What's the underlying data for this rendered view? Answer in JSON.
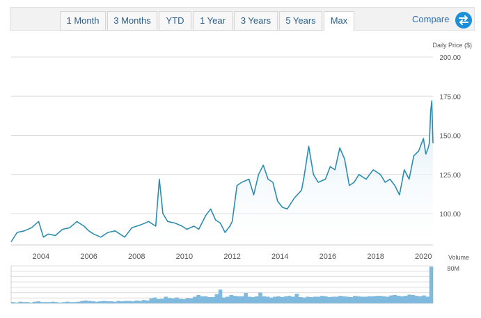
{
  "tabs": [
    {
      "label": "1 Month",
      "active": false
    },
    {
      "label": "3 Months",
      "active": false
    },
    {
      "label": "YTD",
      "active": false
    },
    {
      "label": "1 Year",
      "active": false
    },
    {
      "label": "3 Years",
      "active": false
    },
    {
      "label": "5 Years",
      "active": false
    },
    {
      "label": "Max",
      "active": true
    }
  ],
  "compare": {
    "label": "Compare",
    "icon": "swap-arrows-icon",
    "color": "#1d8fd8"
  },
  "colors": {
    "line": "#2b8cb0",
    "area_top": "#d6eaf5",
    "volume": "#7fb9dd",
    "grid": "#dcdcdc"
  },
  "chart_data": [
    {
      "type": "area",
      "ylabel": "Daily Price ($)",
      "ylim": [
        80,
        200
      ],
      "y_ticks": [
        "100.00",
        "125.00",
        "150.00",
        "175.00",
        "200.00"
      ],
      "x_ticks": [
        "2004",
        "2006",
        "2008",
        "2010",
        "2012",
        "2014",
        "2016",
        "2018",
        "2020"
      ],
      "xlim": [
        2002.75,
        2020.4
      ],
      "series": [
        {
          "x": [
            2002.75,
            2003.0,
            2003.3,
            2003.6,
            2003.9,
            2004.1,
            2004.3,
            2004.6,
            2004.9,
            2005.2,
            2005.5,
            2005.8,
            2006.0,
            2006.2,
            2006.5,
            2006.8,
            2007.1,
            2007.3,
            2007.5,
            2007.8,
            2008.0,
            2008.2,
            2008.5,
            2008.8,
            2008.95,
            2009.1,
            2009.3,
            2009.6,
            2009.9,
            2010.1,
            2010.4,
            2010.6,
            2010.9,
            2011.1,
            2011.3,
            2011.5,
            2011.7,
            2011.9,
            2012.0,
            2012.2,
            2012.4,
            2012.7,
            2012.9,
            2013.1,
            2013.3,
            2013.5,
            2013.7,
            2013.9,
            2014.1,
            2014.3,
            2014.6,
            2014.9,
            2015.0,
            2015.2,
            2015.4,
            2015.6,
            2015.9,
            2016.1,
            2016.3,
            2016.5,
            2016.7,
            2016.9,
            2017.1,
            2017.3,
            2017.6,
            2017.9,
            2018.2,
            2018.4,
            2018.6,
            2018.8,
            2019.0,
            2019.2,
            2019.4,
            2019.6,
            2019.8,
            2020.0,
            2020.1,
            2020.2,
            2020.25,
            2020.3,
            2020.35,
            2020.4
          ],
          "y": [
            82,
            88,
            89,
            91,
            95,
            85,
            87,
            86,
            90,
            91,
            95,
            92,
            89,
            87,
            85,
            88,
            89,
            87,
            85,
            91,
            92,
            93,
            95,
            92,
            122,
            100,
            95,
            94,
            92,
            90,
            92,
            90,
            99,
            103,
            96,
            94,
            88,
            92,
            95,
            118,
            120,
            122,
            112,
            125,
            131,
            122,
            120,
            108,
            104,
            103,
            110,
            115,
            123,
            143,
            125,
            120,
            122,
            130,
            128,
            142,
            135,
            118,
            120,
            125,
            122,
            128,
            125,
            120,
            122,
            118,
            112,
            128,
            122,
            137,
            140,
            148,
            138,
            142,
            145,
            165,
            172,
            145
          ]
        }
      ]
    },
    {
      "type": "bar",
      "ylabel": "Volume",
      "ylim": [
        0,
        90
      ],
      "y_ticks": [
        "80M"
      ],
      "values": [
        3,
        2,
        4,
        3,
        3,
        2,
        4,
        5,
        3,
        3,
        3,
        4,
        3,
        2,
        3,
        4,
        3,
        3,
        4,
        6,
        7,
        6,
        5,
        4,
        5,
        6,
        5,
        5,
        4,
        6,
        5,
        6,
        6,
        5,
        7,
        6,
        8,
        7,
        12,
        14,
        10,
        11,
        16,
        13,
        12,
        14,
        11,
        10,
        13,
        12,
        16,
        20,
        17,
        17,
        15,
        15,
        22,
        33,
        14,
        16,
        20,
        18,
        17,
        17,
        25,
        16,
        15,
        17,
        26,
        17,
        16,
        14,
        16,
        17,
        15,
        17,
        18,
        16,
        23,
        15,
        14,
        16,
        15,
        16,
        16,
        18,
        17,
        15,
        16,
        16,
        18,
        17,
        16,
        15,
        18,
        17,
        16,
        16,
        17,
        17,
        18,
        18,
        17,
        16,
        19,
        20,
        18,
        17,
        18,
        21,
        20,
        18,
        17,
        19,
        16,
        88
      ]
    }
  ]
}
